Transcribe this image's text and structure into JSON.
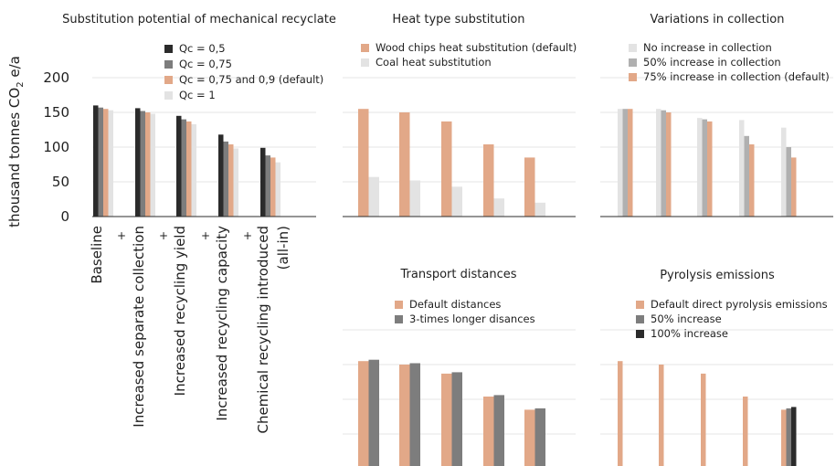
{
  "ylabel_main": "thousand tonnes CO",
  "ylabel_sub": "2",
  "ylabel_end": " e/a",
  "plus_sign": "+",
  "colors": {
    "black": "#2b2b2b",
    "dark_gray": "#7d7d7d",
    "mid_gray": "#b0b0b0",
    "light_gray": "#e3e3e3",
    "salmon": "#e2a888"
  },
  "chart_data": [
    {
      "id": "mech",
      "type": "bar",
      "title": "Substitution potential of mechanical recyclate",
      "categories": [
        "Baseline",
        "Increased separate collection",
        "Increased recycling yield",
        "Increased recycling capacity",
        "Chemical recycling introduced (all-in)"
      ],
      "category_lines": [
        [
          "Baseline"
        ],
        [
          "Increased separate collection"
        ],
        [
          "Increased recycling yield"
        ],
        [
          "Increased recycling capacity"
        ],
        [
          "Chemical recycling introduced",
          "(all-in)"
        ]
      ],
      "yticks": [
        0,
        50,
        100,
        150,
        200
      ],
      "ylim": [
        0,
        200
      ],
      "grid": true,
      "legend_position": "top-right",
      "series": [
        {
          "name": "Qc = 0,5",
          "color": "#2b2b2b",
          "values": [
            160,
            156,
            145,
            118,
            99
          ]
        },
        {
          "name": "Qc = 0,75",
          "color": "#7d7d7d",
          "values": [
            157,
            152,
            140,
            108,
            88
          ]
        },
        {
          "name": "Qc = 0,75 and 0,9 (default)",
          "color": "#e2a888",
          "values": [
            155,
            150,
            137,
            104,
            85
          ]
        },
        {
          "name": "Qc = 1",
          "color": "#e3e3e3",
          "values": [
            153,
            148,
            133,
            98,
            78
          ]
        }
      ]
    },
    {
      "id": "heat",
      "type": "bar",
      "title": "Heat type substitution",
      "categories": [
        "Baseline",
        "Increased separate collection",
        "Increased recycling yield",
        "Increased recycling capacity",
        "Chemical recycling introduced (all-in)"
      ],
      "ylim": [
        0,
        200
      ],
      "grid": true,
      "legend_position": "top-left",
      "series": [
        {
          "name": "Wood chips heat substitution (default)",
          "color": "#e2a888",
          "values": [
            155,
            150,
            137,
            104,
            85
          ]
        },
        {
          "name": "Coal heat substitution",
          "color": "#e3e3e3",
          "values": [
            57,
            52,
            43,
            26,
            20
          ]
        }
      ]
    },
    {
      "id": "collection",
      "type": "bar",
      "title": "Variations in collection",
      "categories": [
        "Baseline",
        "Increased separate collection",
        "Increased recycling yield",
        "Increased recycling capacity",
        "Chemical recycling introduced (all-in)"
      ],
      "ylim": [
        0,
        200
      ],
      "grid": true,
      "legend_position": "top-left",
      "series": [
        {
          "name": "No increase in collection",
          "color": "#e3e3e3",
          "values": [
            155,
            155,
            142,
            139,
            128
          ]
        },
        {
          "name": "50% increase in collection",
          "color": "#b0b0b0",
          "values": [
            155,
            153,
            140,
            116,
            100
          ]
        },
        {
          "name": "75% increase in collection (default)",
          "color": "#e2a888",
          "values": [
            155,
            150,
            137,
            104,
            85
          ]
        }
      ]
    },
    {
      "id": "transport",
      "type": "bar",
      "title": "Transport distances",
      "categories": [
        "Baseline",
        "Increased separate collection",
        "Increased recycling yield",
        "Increased recycling capacity",
        "Chemical recycling introduced (all-in)"
      ],
      "ylim": [
        0,
        200
      ],
      "grid": true,
      "legend_position": "top-left",
      "series": [
        {
          "name": "Default distances",
          "color": "#e2a888",
          "values": [
            155,
            150,
            137,
            104,
            85
          ]
        },
        {
          "name": "3-times longer disances",
          "color": "#7d7d7d",
          "values": [
            157,
            152,
            139,
            106,
            87
          ]
        }
      ]
    },
    {
      "id": "pyrolysis",
      "type": "bar",
      "title": "Pyrolysis emissions",
      "categories": [
        "Baseline",
        "Increased separate collection",
        "Increased recycling yield",
        "Increased recycling capacity",
        "Chemical recycling introduced (all-in)"
      ],
      "ylim": [
        0,
        200
      ],
      "grid": true,
      "legend_position": "top-left",
      "series": [
        {
          "name": "Default direct pyrolysis emissions",
          "color": "#e2a888",
          "values": [
            155,
            150,
            137,
            104,
            85
          ]
        },
        {
          "name": "50% increase",
          "color": "#7d7d7d",
          "values": [
            null,
            null,
            null,
            null,
            87
          ]
        },
        {
          "name": "100% increase",
          "color": "#2b2b2b",
          "values": [
            null,
            null,
            null,
            null,
            89
          ]
        }
      ]
    }
  ]
}
